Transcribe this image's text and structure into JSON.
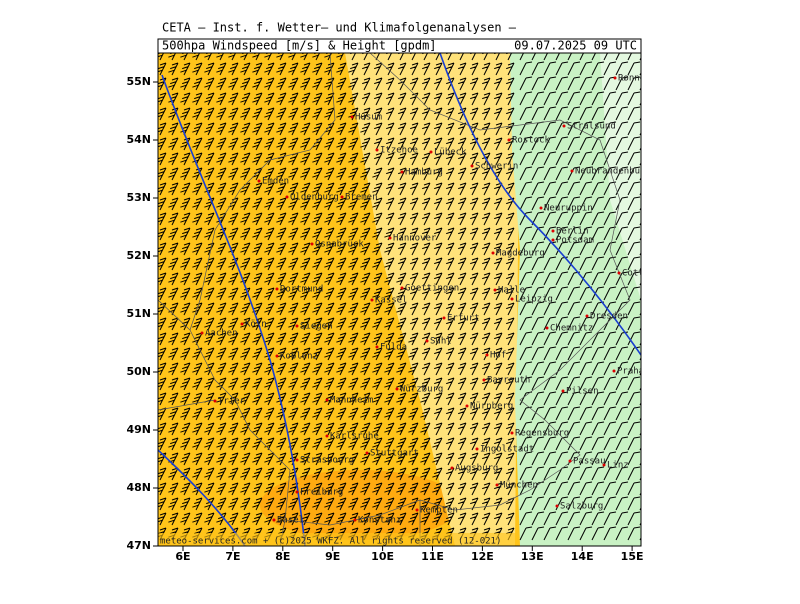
{
  "header": {
    "institute": "CETA — Inst. f. Wetter— und Klimafolgenanalysen —",
    "product": "500hpa Windspeed [m/s] & Height [gpdm]",
    "valid": "09.07.2025 09 UTC"
  },
  "map": {
    "lat_labels": [
      "55N",
      "54N",
      "53N",
      "52N",
      "51N",
      "50N",
      "49N",
      "48N",
      "47N"
    ],
    "lon_labels": [
      "6E",
      "7E",
      "8E",
      "9E",
      "10E",
      "11E",
      "12E",
      "13E",
      "14E",
      "15E"
    ],
    "cities": [
      "Rønne",
      "Husum",
      "Itzehoe",
      "Lübeck",
      "Stralsund",
      "Rostock",
      "Schwerin",
      "Hamburg",
      "Neubrandenburg",
      "Emden",
      "Oldenburg",
      "Bremen",
      "Neuruppin",
      "Berlin",
      "Potsdam",
      "Frankfurt/O.",
      "Osnabrück",
      "Hannover",
      "Magdeburg",
      "Cottbus",
      "Dortmund",
      "Goettingen",
      "Kassel",
      "Halle",
      "Leipzig",
      "Dresden",
      "Erfurt",
      "Chemnitz",
      "Köln",
      "Siegen",
      "Aachen",
      "Fulda",
      "Suhl",
      "Koblenz",
      "Hof",
      "Praha",
      "Bayreuth",
      "Pilsen",
      "Trier",
      "Würzburg",
      "Mannheim",
      "Nürnberg",
      "Regensburg",
      "Karlsruhe",
      "Stuttgart",
      "Ingolstadt",
      "Passau",
      "Linz",
      "Augsburg",
      "Strasbourg",
      "München",
      "Freiburg",
      "Salzburg",
      "Kempten",
      "Konstanz",
      "Basel"
    ]
  },
  "footer": "meteo-services.com + (c)2025 WKFZ. All rights reserved (12-021)"
}
